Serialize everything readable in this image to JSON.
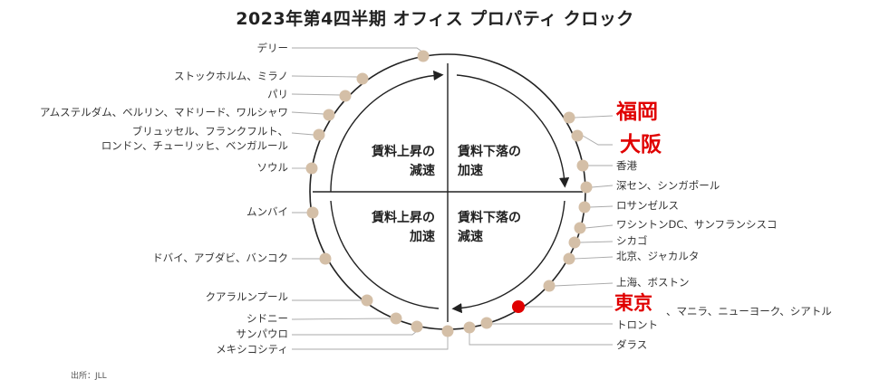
{
  "title": "2023年第4四半期 オフィス プロパティ クロック",
  "source": "出所：JLL",
  "colors": {
    "dot": "#d4bfa7",
    "highlight": "#e00000",
    "line": "#222222",
    "leader": "#aaaaaa"
  },
  "quadrants": {
    "top_left": [
      "賃料上昇の",
      "減速"
    ],
    "top_right": [
      "賃料下落の",
      "加速"
    ],
    "bottom_left": [
      "賃料上昇の",
      "加速"
    ],
    "bottom_right": [
      "賃料下落の",
      "減速"
    ]
  },
  "markets": [
    {
      "label": "デリー"
    },
    {
      "label": "ストックホルム、ミラノ"
    },
    {
      "label": "パリ"
    },
    {
      "label": "アムステルダム、ベルリン、マドリード、ワルシャワ"
    },
    {
      "label": "ブリュッセル、フランクフルト、"
    },
    {
      "label": "ロンドン、チューリッヒ、ベンガルール"
    },
    {
      "label": "ソウル"
    },
    {
      "label": "ムンバイ"
    },
    {
      "label": "ドバイ、アブダビ、バンコク"
    },
    {
      "label": "クアラルンプール"
    },
    {
      "label": "シドニー"
    },
    {
      "label": "サンパウロ"
    },
    {
      "label": "メキシコシティ"
    },
    {
      "label": "ダラス"
    },
    {
      "label": "トロント"
    },
    {
      "label": "東京"
    },
    {
      "label": "、マニラ、ニューヨーク、シアトル"
    },
    {
      "label": "上海、ボストン"
    },
    {
      "label": "北京、ジャカルタ"
    },
    {
      "label": "シカゴ"
    },
    {
      "label": "ワシントンDC、サンフランシスコ"
    },
    {
      "label": "ロサンゼルス"
    },
    {
      "label": "深セン、シンガポール"
    },
    {
      "label": "香港"
    },
    {
      "label": "大阪"
    },
    {
      "label": "福岡"
    }
  ]
}
